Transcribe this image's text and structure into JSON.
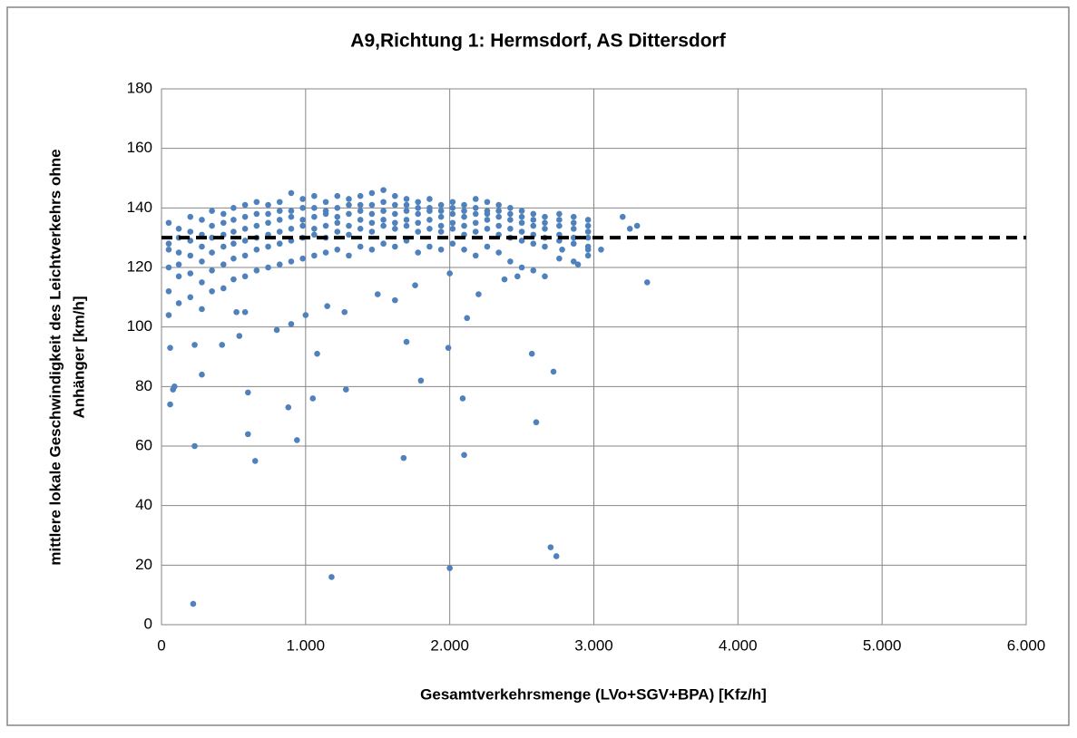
{
  "chart_data": {
    "type": "scatter",
    "title": "A9,Richtung 1: Hermsdorf, AS Dittersdorf",
    "xlabel": "Gesamtverkehrsmenge (LVo+SGV+BPA) [Kfz/h]",
    "ylabel": [
      "mittlere lokale Geschwindigkeit des Leichtverkehrs ohne",
      "Anhänger [km/h]"
    ],
    "xlim": [
      0,
      6000
    ],
    "ylim": [
      0,
      180
    ],
    "xticks": [
      0,
      {
        "value": 1000,
        "label": "1.000"
      },
      {
        "value": 2000,
        "label": "2.000"
      },
      {
        "value": 3000,
        "label": "3.000"
      },
      {
        "value": 4000,
        "label": "4.000"
      },
      {
        "value": 5000,
        "label": "5.000"
      },
      {
        "value": 6000,
        "label": "6.000"
      }
    ],
    "yticks": [
      0,
      20,
      40,
      60,
      80,
      100,
      120,
      140,
      160,
      180
    ],
    "grid": true,
    "reference_line": {
      "value": 130,
      "color": "#000000"
    },
    "series": [
      {
        "color": "#4f81bd",
        "x": [
          50,
          50,
          50,
          50,
          50,
          50,
          120,
          120,
          120,
          120,
          120,
          120,
          200,
          200,
          200,
          200,
          200,
          200,
          280,
          280,
          280,
          280,
          280,
          280,
          350,
          350,
          350,
          350,
          350,
          350,
          430,
          430,
          430,
          430,
          430,
          430,
          500,
          500,
          500,
          500,
          500,
          500,
          580,
          580,
          580,
          580,
          580,
          580,
          660,
          660,
          660,
          660,
          660,
          660,
          740,
          740,
          740,
          740,
          740,
          740,
          820,
          820,
          820,
          820,
          820,
          820,
          900,
          900,
          900,
          900,
          900,
          900,
          980,
          980,
          980,
          980,
          980,
          980,
          1060,
          1060,
          1060,
          1060,
          1060,
          1060,
          1140,
          1140,
          1140,
          1140,
          1140,
          1140,
          1220,
          1220,
          1220,
          1220,
          1220,
          1220,
          1300,
          1300,
          1300,
          1300,
          1300,
          1300,
          1380,
          1380,
          1380,
          1380,
          1380,
          1380,
          1460,
          1460,
          1460,
          1460,
          1460,
          1460,
          1540,
          1540,
          1540,
          1540,
          1540,
          1540,
          1620,
          1620,
          1620,
          1620,
          1620,
          1620,
          1700,
          1700,
          1700,
          1700,
          1700,
          1700,
          1780,
          1780,
          1780,
          1780,
          1780,
          1780,
          1860,
          1860,
          1860,
          1860,
          1860,
          1860,
          1940,
          1940,
          1940,
          1940,
          1940,
          1940,
          2020,
          2020,
          2020,
          2020,
          2020,
          2020,
          2100,
          2100,
          2100,
          2100,
          2100,
          2100,
          2180,
          2180,
          2180,
          2180,
          2180,
          2180,
          2260,
          2260,
          2260,
          2260,
          2260,
          2260,
          2340,
          2340,
          2340,
          2340,
          2340,
          2340,
          2420,
          2420,
          2420,
          2420,
          2420,
          2420,
          2500,
          2500,
          2500,
          2500,
          2500,
          2500,
          2580,
          2580,
          2580,
          2580,
          2580,
          2580,
          2660,
          2660,
          2660,
          2660,
          2660,
          2660,
          2760,
          2760,
          2760,
          2760,
          2760,
          2760,
          2860,
          2860,
          2860,
          2860,
          2860,
          2860,
          2960,
          2960,
          2960,
          2960,
          2960,
          2960,
          220,
          1180,
          2000,
          2700,
          2740,
          230,
          600,
          650,
          940,
          600,
          880,
          1050,
          1280,
          1680,
          2100,
          2090,
          1800,
          1700,
          1990,
          1080,
          2600,
          2720,
          2570,
          60,
          80,
          90,
          60,
          280,
          230,
          420,
          540,
          3370,
          3200,
          3300,
          3250,
          3050,
          2960,
          2890,
          2780,
          2120,
          580,
          520,
          800,
          900,
          1000,
          1150,
          1270,
          1500,
          1620,
          1760,
          2200,
          2470,
          2380,
          2000
        ],
        "values": [
          135,
          128,
          120,
          112,
          104,
          126,
          133,
          125,
          117,
          108,
          130,
          121,
          137,
          129,
          118,
          110,
          124,
          132,
          136,
          127,
          115,
          106,
          131,
          122,
          139,
          130,
          119,
          112,
          125,
          134,
          138,
          131,
          121,
          113,
          127,
          135,
          140,
          132,
          123,
          116,
          128,
          136,
          141,
          133,
          124,
          117,
          129,
          137,
          142,
          134,
          126,
          119,
          130,
          138,
          141,
          135,
          127,
          120,
          131,
          138,
          142,
          136,
          128,
          121,
          132,
          139,
          145,
          137,
          129,
          122,
          133,
          139,
          143,
          136,
          130,
          123,
          134,
          140,
          144,
          137,
          131,
          124,
          133,
          140,
          142,
          138,
          130,
          125,
          134,
          139,
          144,
          137,
          132,
          126,
          135,
          140,
          143,
          138,
          131,
          124,
          134,
          141,
          144,
          139,
          133,
          127,
          136,
          141,
          145,
          138,
          132,
          126,
          135,
          141,
          146,
          139,
          134,
          128,
          136,
          142,
          144,
          138,
          133,
          127,
          135,
          141,
          143,
          139,
          134,
          129,
          136,
          141,
          142,
          138,
          132,
          125,
          135,
          140,
          143,
          139,
          133,
          127,
          136,
          140,
          141,
          137,
          132,
          126,
          134,
          139,
          142,
          138,
          133,
          128,
          135,
          140,
          141,
          137,
          131,
          126,
          134,
          139,
          143,
          138,
          132,
          124,
          135,
          140,
          142,
          138,
          133,
          127,
          136,
          139,
          141,
          137,
          131,
          125,
          134,
          139,
          140,
          136,
          130,
          122,
          133,
          138,
          139,
          135,
          129,
          120,
          132,
          137,
          138,
          134,
          128,
          119,
          131,
          136,
          137,
          133,
          127,
          117,
          130,
          135,
          138,
          134,
          129,
          123,
          131,
          136,
          137,
          133,
          128,
          122,
          130,
          135,
          136,
          132,
          127,
          124,
          130,
          134,
          7,
          16,
          19,
          26,
          23,
          60,
          64,
          55,
          62,
          78,
          73,
          76,
          79,
          56,
          57,
          76,
          82,
          95,
          93,
          91,
          68,
          85,
          91,
          74,
          79,
          80,
          93,
          84,
          94,
          94,
          97,
          115,
          137,
          134,
          133,
          126,
          126,
          121,
          126,
          103,
          105,
          105,
          99,
          101,
          104,
          107,
          105,
          111,
          109,
          114,
          111,
          117,
          116,
          118
        ]
      }
    ]
  }
}
